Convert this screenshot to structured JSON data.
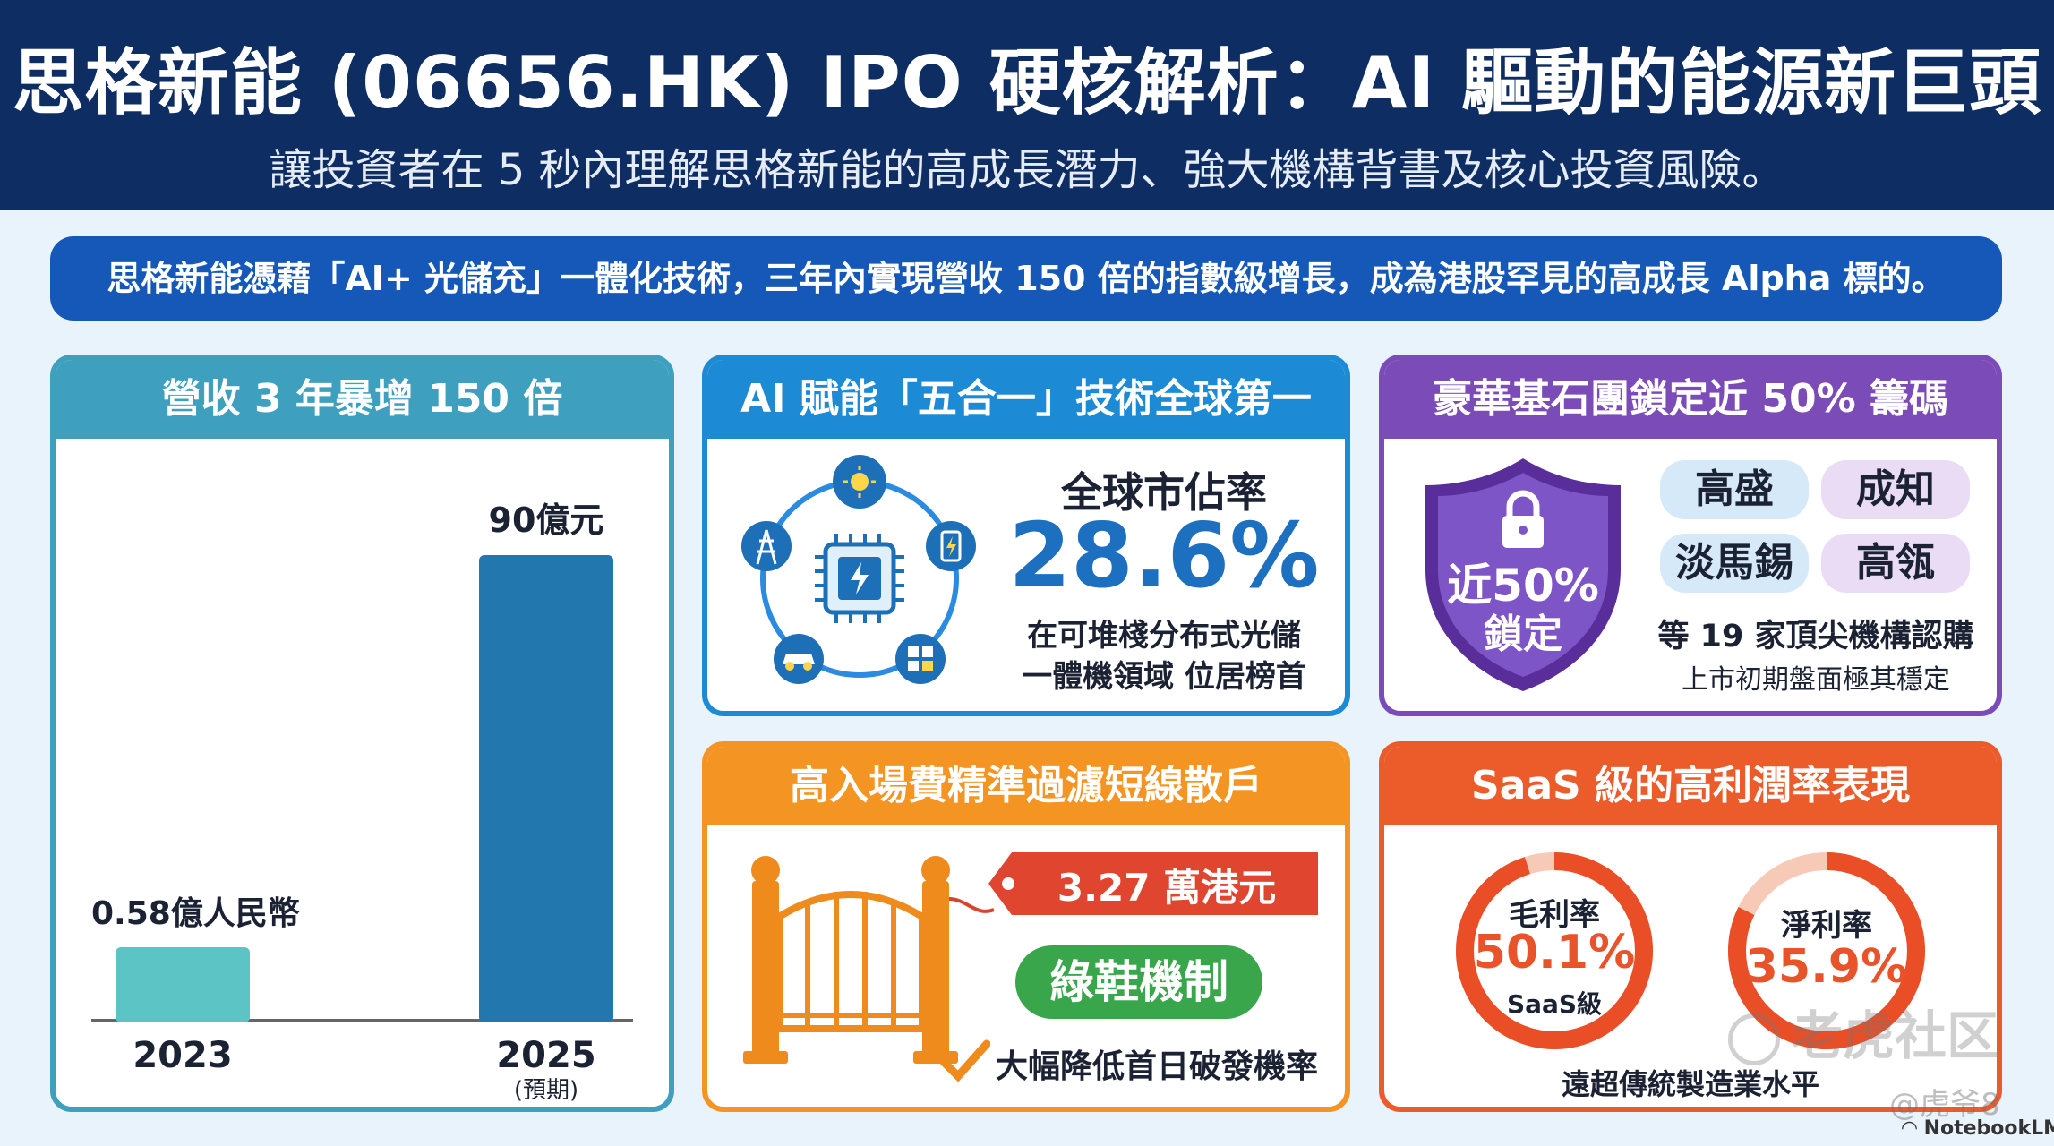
{
  "header": {
    "title": "思格新能 (06656.HK) IPO 硬核解析：AI 驅動的能源新巨頭",
    "subtitle": "讓投資者在 5 秒內理解思格新能的高成長潛力、強大機構背書及核心投資風險。"
  },
  "banner": {
    "text": "思格新能憑藉「AI+ 光儲充」一體化技術，三年內實現營收 150 倍的指數級增長，成為港股罕見的高成長 Alpha 標的。"
  },
  "revenue_card": {
    "title": "營收 3 年暴增 150 倍",
    "colors": {
      "bar_2023": "#5cc4c4",
      "bar_2025": "#2278ae"
    }
  },
  "chart_data": {
    "type": "bar",
    "categories": [
      "2023",
      "2025"
    ],
    "category_notes": [
      "",
      "(預期)"
    ],
    "values": [
      0.58,
      90
    ],
    "data_labels": [
      "0.58億人民幣",
      "90億元"
    ],
    "title": "",
    "xlabel": "",
    "ylabel": ""
  },
  "tech_card": {
    "title": "AI 賦能「五合一」技術全球第一",
    "share_label": "全球市佔率",
    "share_value": "28.6%",
    "desc_line1": "在可堆棧分布式光儲",
    "desc_line2": "一體機領域 位居榜首",
    "icons": [
      "sun-icon",
      "battery-icon",
      "grid-icon",
      "car-icon",
      "tower-icon",
      "chip-icon"
    ]
  },
  "cornerstone_card": {
    "title": "豪華基石團鎖定近 50% 籌碼",
    "shield_line1": "近50%",
    "shield_line2": "鎖定",
    "investors": [
      "高盛",
      "成知",
      "淡馬錫",
      "高瓴"
    ],
    "summary": "等 19 家頂尖機構認購",
    "note": "上市初期盤面極其穩定"
  },
  "fee_card": {
    "title": "高入場費精準過濾短線散戶",
    "price_tag": "3.27 萬港元",
    "mechanism": "綠鞋機制",
    "benefit": "大幅降低首日破發機率"
  },
  "saas_card": {
    "title": "SaaS 級的高利潤率表現",
    "gross_label": "毛利率",
    "gross_value": "50.1%",
    "gross_note": "SaaS級",
    "gross_fraction": 0.501,
    "net_label": "淨利率",
    "net_value": "35.9%",
    "net_fraction": 0.359,
    "footer": "遠超傳統製造業水平"
  },
  "watermarks": {
    "community": "老虎社区",
    "user": "@虎爷8",
    "brand": "NotebookLM"
  }
}
